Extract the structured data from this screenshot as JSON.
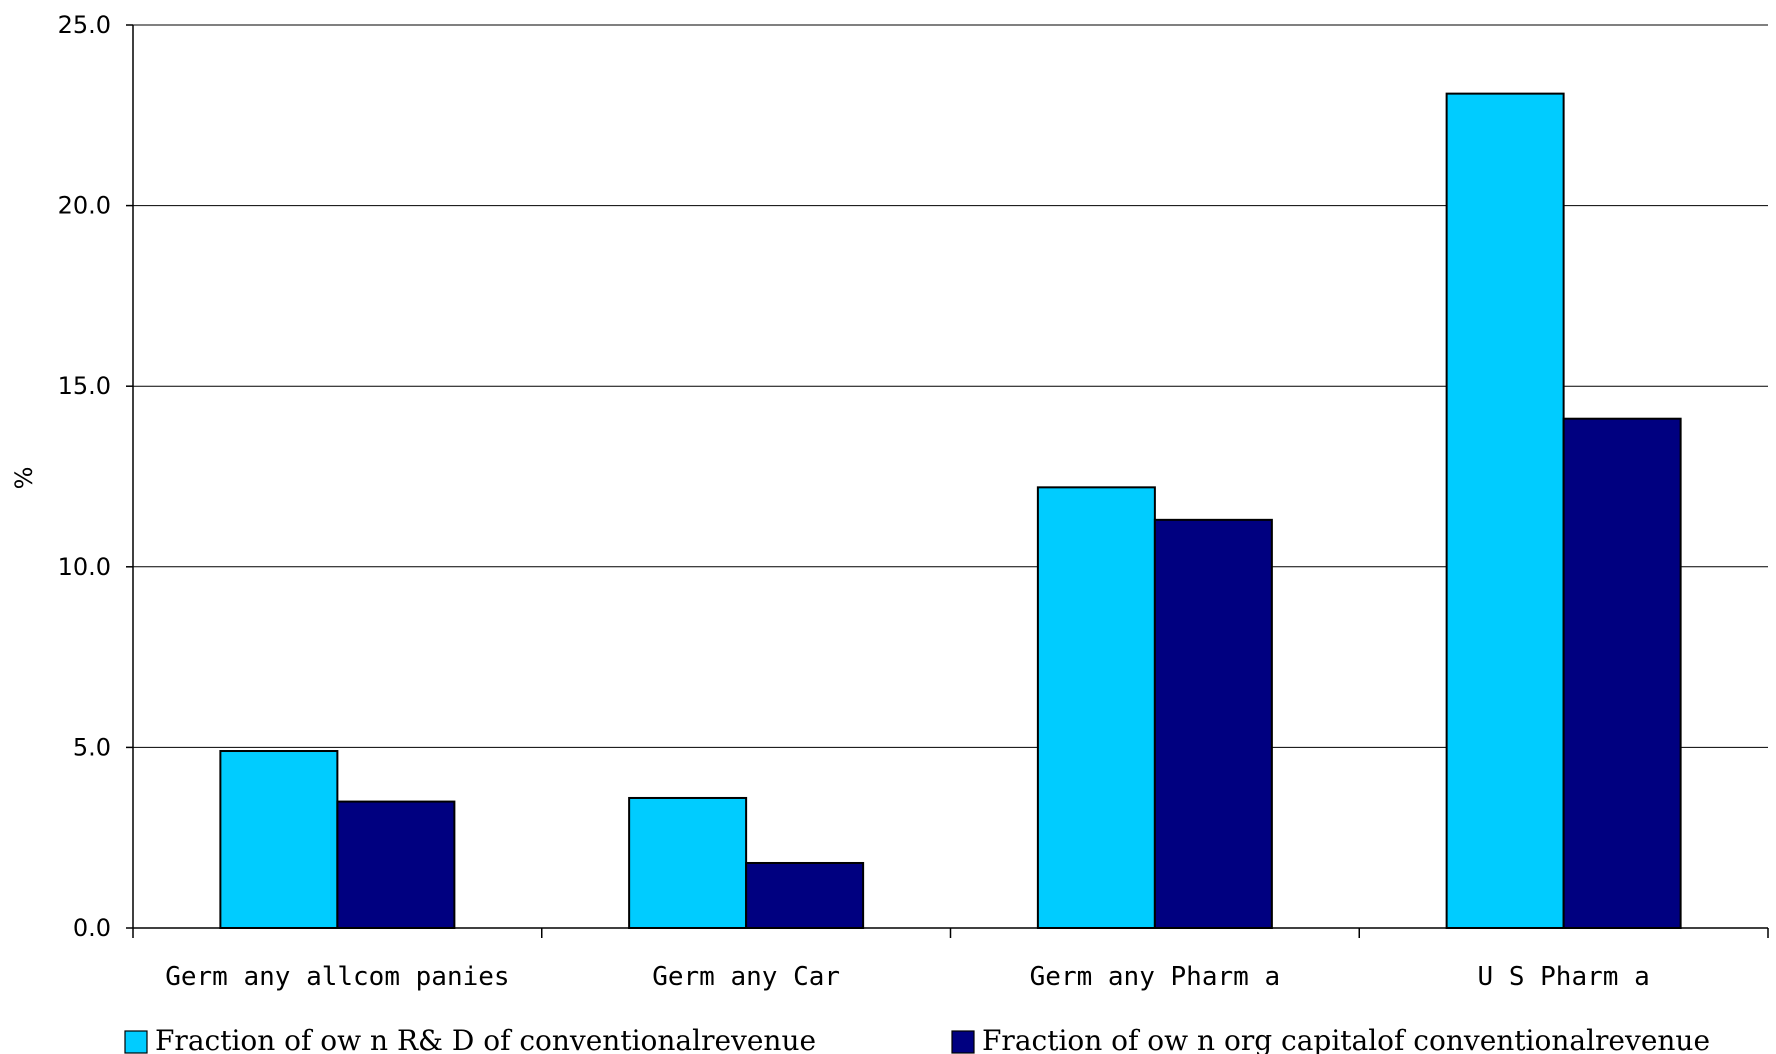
{
  "chart_data": {
    "type": "bar",
    "title": "",
    "xlabel": "",
    "ylabel": "%",
    "ylim": [
      0,
      25
    ],
    "yticks": [
      "0.0",
      "5.0",
      "10.0",
      "15.0",
      "20.0",
      "25.0"
    ],
    "categories": [
      "Germ any allcom panies",
      "Germ any Car",
      "Germ any Pharm a",
      "U S Pharm a"
    ],
    "series": [
      {
        "name": "Fraction of ow n R& D of conventionalrevenue",
        "color": "#00CCFF",
        "values": [
          4.9,
          3.6,
          12.2,
          23.1
        ]
      },
      {
        "name": "Fraction of ow n org capitalof conventionalrevenue",
        "color": "#000080",
        "values": [
          3.5,
          1.8,
          11.3,
          14.1
        ]
      }
    ],
    "grid": true,
    "legend": "bottom"
  }
}
